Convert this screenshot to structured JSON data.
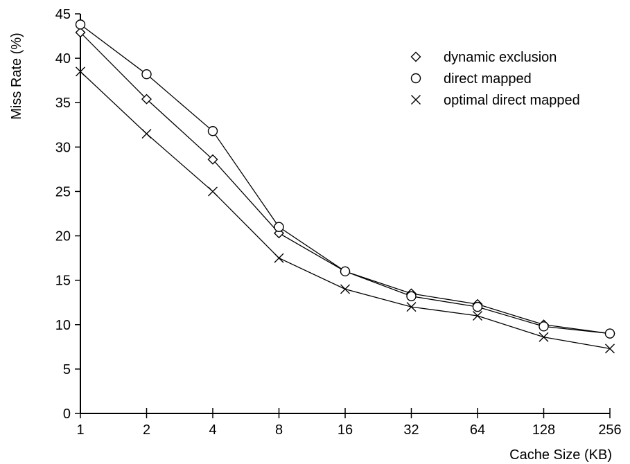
{
  "chart_data": {
    "type": "line",
    "xlabel": "Cache Size (KB)",
    "ylabel": "Miss Rate (%)",
    "categories": [
      "1",
      "2",
      "4",
      "8",
      "16",
      "32",
      "64",
      "128",
      "256"
    ],
    "ylim": [
      0,
      45
    ],
    "yticks": [
      0,
      5,
      10,
      15,
      20,
      25,
      30,
      35,
      40,
      45
    ],
    "grid": false,
    "legend_position": "top-right",
    "series": [
      {
        "name": "dynamic exclusion",
        "marker": "diamond",
        "values": [
          42.9,
          35.4,
          28.6,
          20.3,
          16.0,
          13.5,
          12.3,
          10.0,
          9.0
        ]
      },
      {
        "name": "direct mapped",
        "marker": "circle",
        "values": [
          43.8,
          38.2,
          31.8,
          21.0,
          16.0,
          13.2,
          12.0,
          9.8,
          9.0
        ]
      },
      {
        "name": "optimal direct mapped",
        "marker": "x",
        "values": [
          38.5,
          31.5,
          25.0,
          17.5,
          14.0,
          12.0,
          11.0,
          8.6,
          7.3
        ]
      }
    ]
  }
}
